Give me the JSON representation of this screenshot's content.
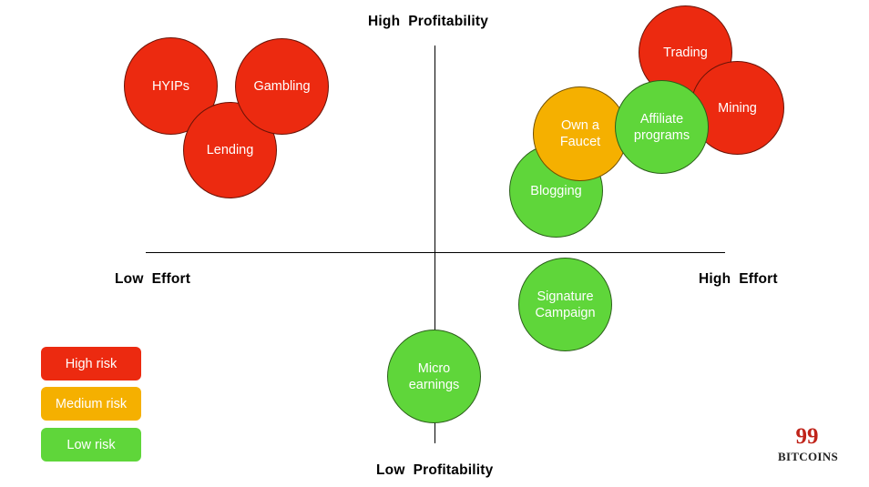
{
  "axes": {
    "top": "High  Profitability",
    "bottom": "Low  Profitability",
    "left": "Low  Effort",
    "right": "High  Effort"
  },
  "colors": {
    "high": "#ec2a10",
    "medium": "#f5b000",
    "low": "#5fd63a"
  },
  "bubbles": [
    {
      "label": "Trading",
      "risk": "high"
    },
    {
      "label": "Mining",
      "risk": "high"
    },
    {
      "label": "Blogging",
      "risk": "low"
    },
    {
      "label": "Own a\nFaucet",
      "risk": "medium"
    },
    {
      "label": "Affiliate\nprograms",
      "risk": "low"
    },
    {
      "label": "HYIPs",
      "risk": "high"
    },
    {
      "label": "Lending",
      "risk": "high"
    },
    {
      "label": "Gambling",
      "risk": "high"
    },
    {
      "label": "Signature\nCampaign",
      "risk": "low"
    },
    {
      "label": "Micro\nearnings",
      "risk": "low"
    }
  ],
  "legend": [
    {
      "label": "High risk",
      "risk": "high"
    },
    {
      "label": "Medium risk",
      "risk": "medium"
    },
    {
      "label": "Low risk",
      "risk": "low"
    }
  ],
  "logo": {
    "number": "99",
    "text": "BITCOINS"
  }
}
